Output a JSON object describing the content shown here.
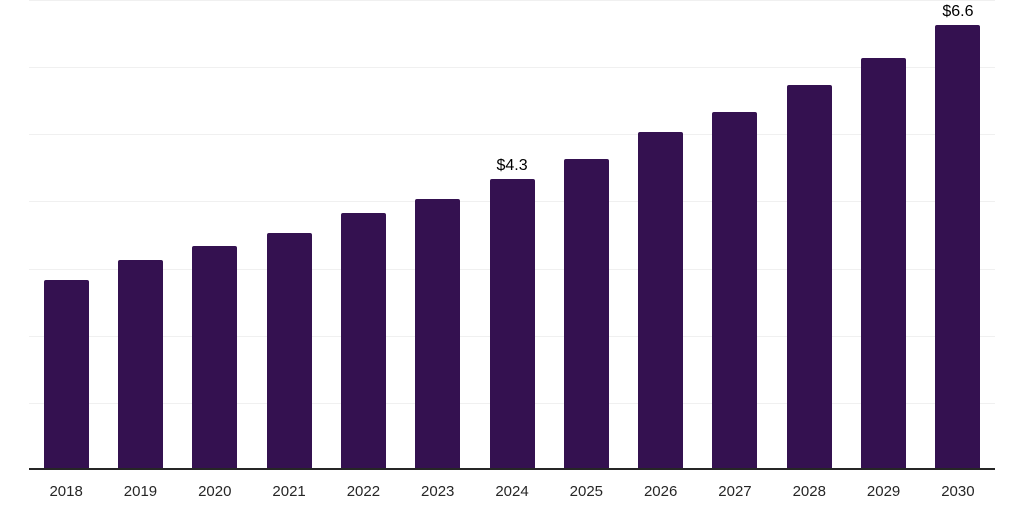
{
  "chart_data": {
    "type": "bar",
    "title": "",
    "xlabel": "",
    "ylabel": "",
    "categories": [
      "2018",
      "2019",
      "2020",
      "2021",
      "2022",
      "2023",
      "2024",
      "2025",
      "2026",
      "2027",
      "2028",
      "2029",
      "2030"
    ],
    "values": [
      2.8,
      3.1,
      3.3,
      3.5,
      3.8,
      4.0,
      4.3,
      4.6,
      5.0,
      5.3,
      5.7,
      6.1,
      6.6
    ],
    "data_labels": [
      "",
      "",
      "",
      "",
      "",
      "",
      "$4.3",
      "",
      "",
      "",
      "",
      "",
      "$6.6"
    ],
    "ylim": [
      0,
      7
    ],
    "gridline_step": 1,
    "grid": "horizontal",
    "legend_position": "none",
    "colors": {
      "bar": "#341150",
      "gridline": "#f0f0f0",
      "axis": "#262626",
      "tick_label": "#262626",
      "data_label": "#000000",
      "background": "#ffffff"
    }
  }
}
